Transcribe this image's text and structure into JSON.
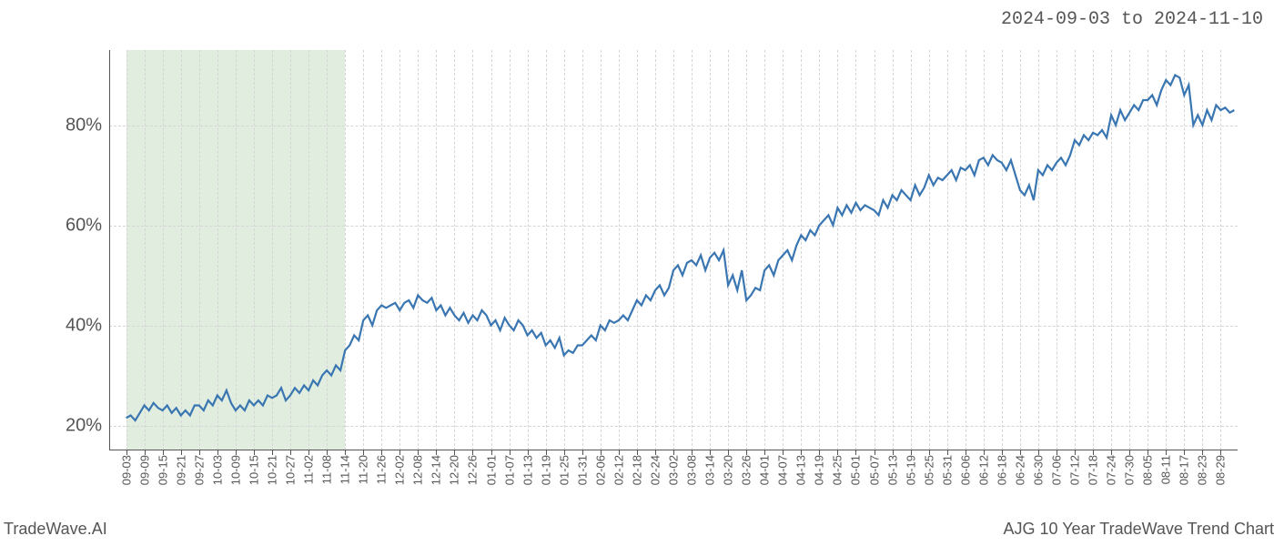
{
  "header": {
    "date_range": "2024-09-03 to 2024-11-10"
  },
  "footer": {
    "left": "TradeWave.AI",
    "right": "AJG 10 Year TradeWave Trend Chart"
  },
  "chart": {
    "type": "line",
    "background_color": "#ffffff",
    "grid_color": "#d5d5d5",
    "line_color": "#3a76b1",
    "line_width": 2.2,
    "shaded_band": {
      "color": "#c9e0c5",
      "opacity": 0.55,
      "x_start": "09-03",
      "x_end": "11-14"
    },
    "y_axis": {
      "min": 15,
      "max": 95,
      "tick_values": [
        20,
        40,
        60,
        80
      ],
      "tick_labels": [
        "20%",
        "40%",
        "60%",
        "80%"
      ],
      "label_fontsize": 20,
      "label_color": "#555555"
    },
    "x_axis": {
      "tick_labels": [
        "09-03",
        "09-09",
        "09-15",
        "09-21",
        "09-27",
        "10-03",
        "10-09",
        "10-15",
        "10-21",
        "10-27",
        "11-02",
        "11-08",
        "11-14",
        "11-20",
        "11-26",
        "12-02",
        "12-08",
        "12-14",
        "12-20",
        "12-26",
        "01-01",
        "01-07",
        "01-13",
        "01-19",
        "01-25",
        "01-31",
        "02-06",
        "02-12",
        "02-18",
        "02-24",
        "03-02",
        "03-08",
        "03-14",
        "03-20",
        "03-26",
        "04-01",
        "04-07",
        "04-13",
        "04-19",
        "04-25",
        "05-01",
        "05-07",
        "05-13",
        "05-19",
        "05-25",
        "05-31",
        "06-06",
        "06-12",
        "06-18",
        "06-24",
        "06-30",
        "07-06",
        "07-12",
        "07-18",
        "07-24",
        "07-30",
        "08-05",
        "08-11",
        "08-17",
        "08-23",
        "08-29"
      ],
      "label_fontsize": 13,
      "label_color": "#555555",
      "label_rotation": -90
    },
    "series": {
      "x": [
        "09-03",
        "09-09",
        "09-15",
        "09-21",
        "09-27",
        "10-03",
        "10-09",
        "10-15",
        "10-21",
        "10-27",
        "11-02",
        "11-08",
        "11-14",
        "11-20",
        "11-26",
        "12-02",
        "12-08",
        "12-14",
        "12-20",
        "12-26",
        "01-01",
        "01-07",
        "01-13",
        "01-19",
        "01-25",
        "01-31",
        "02-06",
        "02-12",
        "02-18",
        "02-24",
        "03-02",
        "03-08",
        "03-14",
        "03-20",
        "03-26",
        "04-01",
        "04-07",
        "04-13",
        "04-19",
        "04-25",
        "05-01",
        "05-07",
        "05-13",
        "05-19",
        "05-25",
        "05-31",
        "06-06",
        "06-12",
        "06-18",
        "06-24",
        "06-30",
        "07-06",
        "07-12",
        "07-18",
        "07-24",
        "07-30",
        "08-05",
        "08-11",
        "08-17",
        "08-23",
        "08-29"
      ],
      "y_with_noise": [
        [
          21.5,
          22,
          21,
          22.5
        ],
        [
          24,
          23,
          24.5,
          23.5
        ],
        [
          23,
          24,
          22.5,
          23.5
        ],
        [
          22,
          23,
          22,
          24
        ],
        [
          24,
          23,
          25,
          24
        ],
        [
          26,
          25,
          27,
          24.5
        ],
        [
          23,
          24,
          23,
          25
        ],
        [
          24,
          25,
          24,
          26
        ],
        [
          25.5,
          26,
          27.5,
          25
        ],
        [
          26,
          27.5,
          26.5,
          28
        ],
        [
          27,
          29,
          28,
          30
        ],
        [
          31,
          30,
          32,
          31
        ],
        [
          35,
          36,
          38,
          37
        ],
        [
          41,
          42,
          40,
          43
        ],
        [
          44,
          43.5,
          44,
          44.5
        ],
        [
          43,
          44.5,
          45,
          43.5
        ],
        [
          46,
          45,
          44.5,
          45.5
        ],
        [
          43,
          44,
          42,
          43.5
        ],
        [
          42,
          41,
          42.5,
          40.5
        ],
        [
          42,
          41,
          43,
          42
        ],
        [
          40,
          41,
          39,
          41.5
        ],
        [
          40,
          39,
          41,
          40
        ],
        [
          38,
          39,
          37.5,
          38.5
        ],
        [
          36,
          37,
          35.5,
          37.5
        ],
        [
          34,
          35,
          34.5,
          36
        ],
        [
          36,
          37,
          38,
          37
        ],
        [
          40,
          39,
          41,
          40.5
        ],
        [
          41,
          42,
          41,
          43
        ],
        [
          45,
          44,
          46,
          45
        ],
        [
          47,
          48,
          46,
          47.5
        ],
        [
          51,
          52,
          50,
          52.5
        ],
        [
          53,
          52,
          54,
          51
        ],
        [
          53.5,
          54.5,
          53,
          55
        ],
        [
          48,
          50,
          47,
          51
        ],
        [
          45,
          46,
          47.5,
          47
        ],
        [
          51,
          52,
          50,
          53
        ],
        [
          54,
          55,
          53,
          56
        ],
        [
          58,
          57,
          59,
          58
        ],
        [
          60,
          61,
          62,
          60
        ],
        [
          63.5,
          62,
          64,
          62.5
        ],
        [
          64.5,
          63,
          64,
          63.5
        ],
        [
          63,
          62,
          65,
          63.5
        ],
        [
          66,
          65,
          67,
          66
        ],
        [
          65,
          68,
          66,
          67.5
        ],
        [
          70,
          68,
          69.5,
          69
        ],
        [
          70,
          71,
          69,
          71.5
        ],
        [
          71,
          72,
          70,
          73
        ],
        [
          73.5,
          72,
          74,
          73
        ],
        [
          72.5,
          71,
          73,
          70
        ],
        [
          67,
          66,
          68,
          65
        ],
        [
          71,
          70,
          72,
          71
        ],
        [
          72.5,
          73.5,
          72,
          74
        ],
        [
          77,
          76,
          78,
          77
        ],
        [
          78.5,
          78,
          79,
          77.5
        ],
        [
          82,
          80,
          83,
          81
        ],
        [
          82.5,
          84,
          83,
          85
        ],
        [
          85,
          86,
          84,
          87
        ],
        [
          89,
          88,
          90,
          89.5
        ],
        [
          86,
          88,
          80,
          82
        ],
        [
          80,
          83,
          81,
          84
        ],
        [
          83,
          83.5,
          82.5,
          83
        ]
      ]
    }
  }
}
